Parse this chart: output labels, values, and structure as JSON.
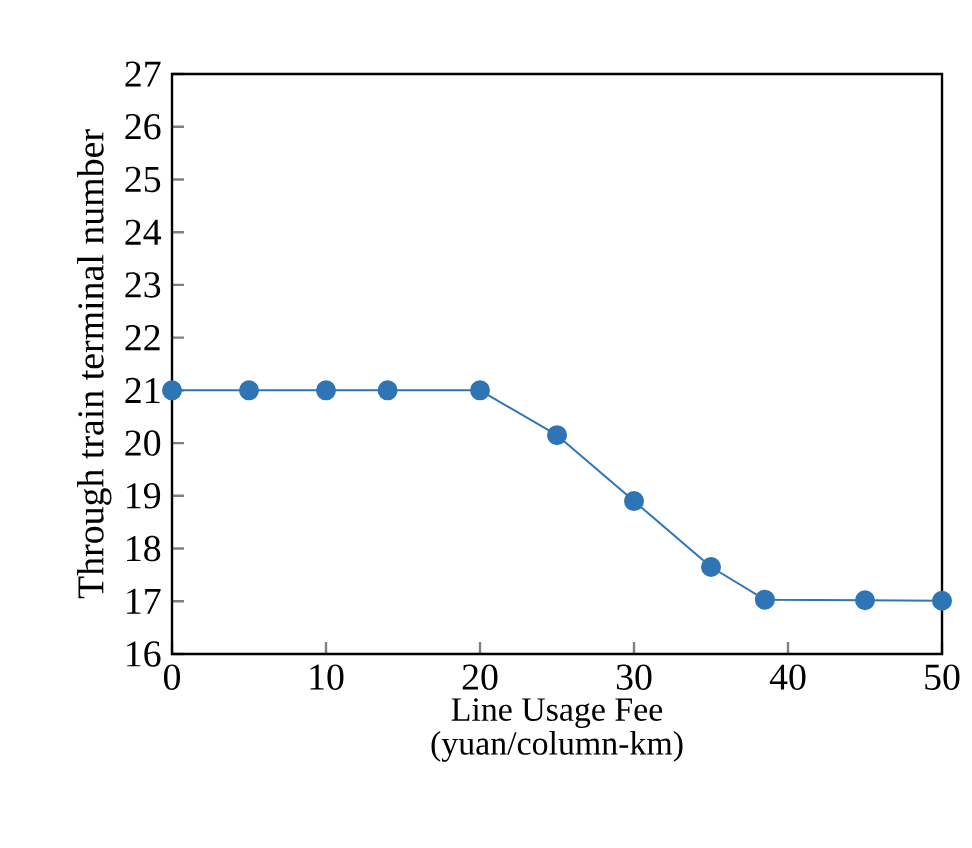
{
  "chart_data": {
    "type": "line",
    "xlabel": "Line Usage Fee\n(yuan/column-km)",
    "ylabel": "Through train terminal number",
    "x": [
      0,
      5,
      10,
      14,
      20,
      25,
      30,
      35,
      38.5,
      45,
      50
    ],
    "series": [
      {
        "color": "#2e75b6",
        "values": [
          21,
          21,
          21,
          21,
          21,
          20.15,
          18.9,
          17.65,
          17.03,
          17.02,
          17.01
        ]
      }
    ],
    "xlim": [
      0,
      50
    ],
    "xticks": [
      0,
      10,
      20,
      30,
      40,
      50
    ],
    "ylim": [
      16,
      27
    ],
    "yticks": [
      16,
      17,
      18,
      19,
      20,
      21,
      22,
      23,
      24,
      25,
      26,
      27
    ],
    "marker": "circle",
    "line_style": "solid"
  }
}
